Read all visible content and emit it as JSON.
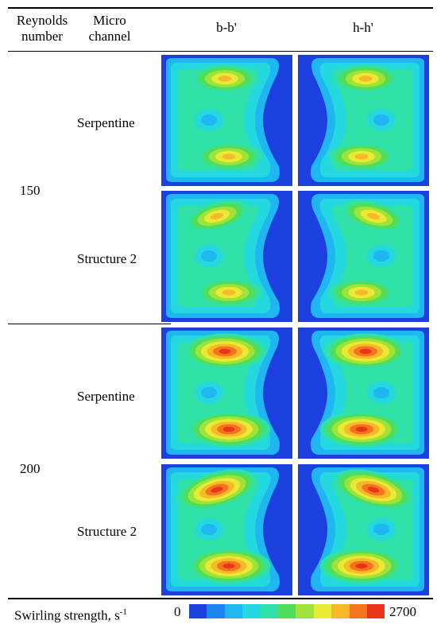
{
  "header": {
    "col_reynolds": [
      "Reynolds",
      "number"
    ],
    "col_channel": [
      "Micro",
      "channel"
    ],
    "col_bb": "b-b'",
    "col_hh": "h-h'"
  },
  "rows": [
    {
      "reynolds": "150",
      "channels": [
        "Serpentine",
        "Structure 2"
      ]
    },
    {
      "reynolds": "200",
      "channels": [
        "Serpentine",
        "Structure 2"
      ]
    }
  ],
  "colorbar": {
    "label": "Swirling strength, s",
    "label_sup": "-1",
    "min": "0",
    "max": "2700",
    "colors": [
      "#1c3fe0",
      "#1b86ef",
      "#1fb6f2",
      "#24d8e0",
      "#2fe0a8",
      "#4fde5c",
      "#9ee23a",
      "#e9ea33",
      "#f7b92a",
      "#f4731d",
      "#e9361a"
    ]
  }
}
